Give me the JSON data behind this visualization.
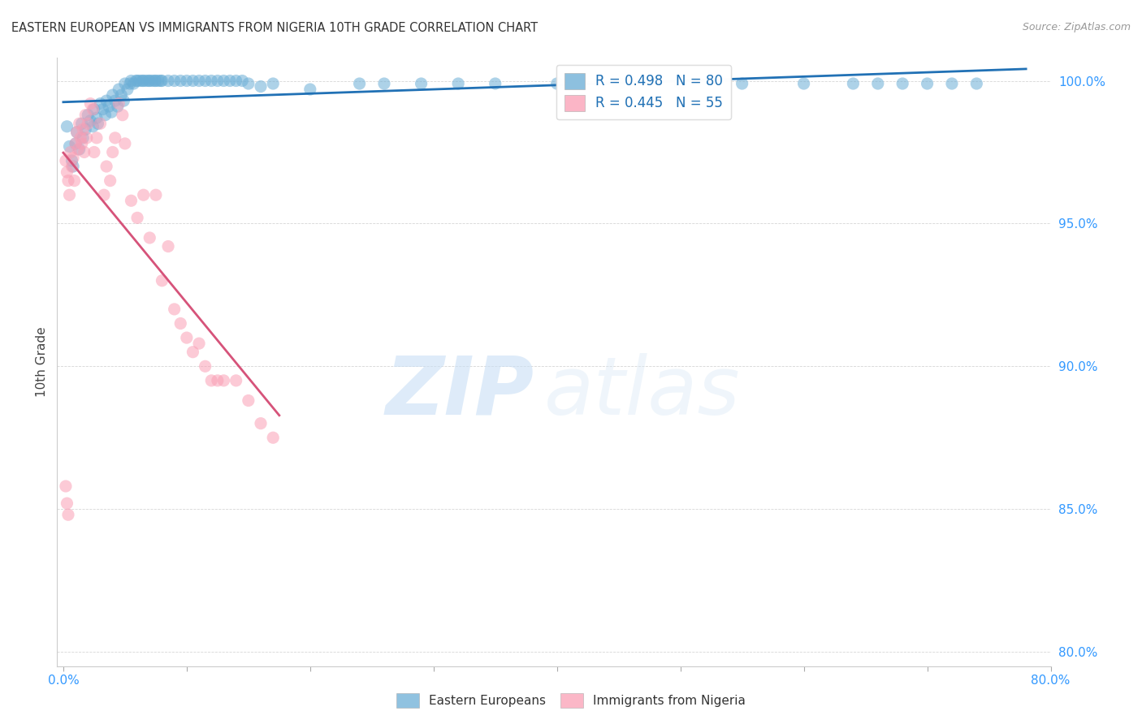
{
  "title": "EASTERN EUROPEAN VS IMMIGRANTS FROM NIGERIA 10TH GRADE CORRELATION CHART",
  "source": "Source: ZipAtlas.com",
  "ylabel": "10th Grade",
  "xlim": [
    -0.005,
    0.8
  ],
  "ylim": [
    0.795,
    1.008
  ],
  "xticks": [
    0.0,
    0.1,
    0.2,
    0.3,
    0.4,
    0.5,
    0.6,
    0.7,
    0.8
  ],
  "xticklabels": [
    "0.0%",
    "",
    "",
    "",
    "",
    "",
    "",
    "",
    "80.0%"
  ],
  "yticks": [
    0.8,
    0.85,
    0.9,
    0.95,
    1.0
  ],
  "yticklabels": [
    "80.0%",
    "85.0%",
    "90.0%",
    "95.0%",
    "100.0%"
  ],
  "blue_color": "#6baed6",
  "pink_color": "#fa9fb5",
  "legend_blue_label": "R = 0.498   N = 80",
  "legend_pink_label": "R = 0.445   N = 55",
  "legend_eastern": "Eastern Europeans",
  "legend_nigeria": "Immigrants from Nigeria",
  "blue_line_color": "#2171b5",
  "pink_line_color": "#d6537a",
  "blue_scatter_x": [
    0.003,
    0.005,
    0.007,
    0.008,
    0.01,
    0.011,
    0.013,
    0.015,
    0.016,
    0.018,
    0.02,
    0.022,
    0.024,
    0.025,
    0.027,
    0.028,
    0.03,
    0.032,
    0.034,
    0.035,
    0.037,
    0.039,
    0.04,
    0.042,
    0.044,
    0.045,
    0.047,
    0.049,
    0.05,
    0.052,
    0.054,
    0.055,
    0.057,
    0.059,
    0.06,
    0.062,
    0.064,
    0.065,
    0.067,
    0.069,
    0.07,
    0.072,
    0.074,
    0.075,
    0.077,
    0.079,
    0.08,
    0.085,
    0.09,
    0.095,
    0.1,
    0.105,
    0.11,
    0.115,
    0.12,
    0.125,
    0.13,
    0.135,
    0.14,
    0.145,
    0.15,
    0.16,
    0.17,
    0.2,
    0.24,
    0.26,
    0.29,
    0.32,
    0.35,
    0.4,
    0.45,
    0.5,
    0.55,
    0.6,
    0.64,
    0.66,
    0.68,
    0.7,
    0.72,
    0.74
  ],
  "blue_scatter_y": [
    0.984,
    0.977,
    0.972,
    0.97,
    0.978,
    0.982,
    0.976,
    0.985,
    0.98,
    0.983,
    0.988,
    0.986,
    0.984,
    0.99,
    0.987,
    0.985,
    0.992,
    0.99,
    0.988,
    0.993,
    0.991,
    0.989,
    0.995,
    0.993,
    0.991,
    0.997,
    0.995,
    0.993,
    0.999,
    0.997,
    0.999,
    1.0,
    0.999,
    1.0,
    1.0,
    1.0,
    1.0,
    1.0,
    1.0,
    1.0,
    1.0,
    1.0,
    1.0,
    1.0,
    1.0,
    1.0,
    1.0,
    1.0,
    1.0,
    1.0,
    1.0,
    1.0,
    1.0,
    1.0,
    1.0,
    1.0,
    1.0,
    1.0,
    1.0,
    1.0,
    0.999,
    0.998,
    0.999,
    0.997,
    0.999,
    0.999,
    0.999,
    0.999,
    0.999,
    0.999,
    0.999,
    0.999,
    0.999,
    0.999,
    0.999,
    0.999,
    0.999,
    0.999,
    0.999,
    0.999
  ],
  "pink_scatter_x": [
    0.002,
    0.003,
    0.004,
    0.005,
    0.006,
    0.007,
    0.008,
    0.009,
    0.01,
    0.011,
    0.012,
    0.013,
    0.014,
    0.015,
    0.016,
    0.017,
    0.018,
    0.019,
    0.02,
    0.022,
    0.024,
    0.025,
    0.027,
    0.03,
    0.033,
    0.035,
    0.038,
    0.04,
    0.042,
    0.045,
    0.048,
    0.05,
    0.055,
    0.06,
    0.065,
    0.07,
    0.075,
    0.08,
    0.085,
    0.09,
    0.095,
    0.1,
    0.105,
    0.11,
    0.115,
    0.12,
    0.125,
    0.13,
    0.14,
    0.15,
    0.16,
    0.17,
    0.002,
    0.003,
    0.004
  ],
  "pink_scatter_y": [
    0.972,
    0.968,
    0.965,
    0.96,
    0.975,
    0.97,
    0.973,
    0.965,
    0.978,
    0.982,
    0.976,
    0.985,
    0.98,
    0.978,
    0.983,
    0.975,
    0.988,
    0.98,
    0.985,
    0.992,
    0.99,
    0.975,
    0.98,
    0.985,
    0.96,
    0.97,
    0.965,
    0.975,
    0.98,
    0.992,
    0.988,
    0.978,
    0.958,
    0.952,
    0.96,
    0.945,
    0.96,
    0.93,
    0.942,
    0.92,
    0.915,
    0.91,
    0.905,
    0.908,
    0.9,
    0.895,
    0.895,
    0.895,
    0.895,
    0.888,
    0.88,
    0.875,
    0.858,
    0.852,
    0.848
  ]
}
